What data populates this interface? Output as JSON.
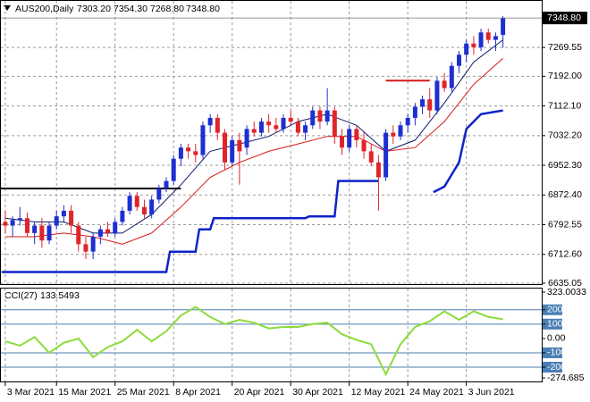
{
  "chart_data": [
    {
      "type": "candlestick",
      "title": "AUS200,Daily",
      "value_labels": {
        "open": "7303.20",
        "high": "7354.30",
        "low": "7268.80",
        "close": "7348.80"
      },
      "open": [
        6800,
        6790,
        6805,
        6810,
        6770,
        6790,
        6750,
        6790,
        6815,
        6830,
        6790,
        6740,
        6720,
        6760,
        6780,
        6770,
        6800,
        6830,
        6870,
        6840,
        6820,
        6860,
        6890,
        6910,
        6970,
        7000,
        6990,
        6980,
        7060,
        7080,
        7040,
        6960,
        7020,
        7000,
        7050,
        7040,
        7070,
        7060,
        7050,
        7080,
        7070,
        7040,
        7060,
        7100,
        7070,
        7100,
        7030,
        7000,
        7050,
        7020,
        6990,
        6960,
        6920,
        7040,
        7030,
        7060,
        7080,
        7110,
        7130,
        7100,
        7180,
        7160,
        7220,
        7250,
        7280,
        7270,
        7310,
        7290,
        7303.2
      ],
      "high": [
        6830,
        6815,
        6840,
        6825,
        6800,
        6810,
        6800,
        6830,
        6845,
        6845,
        6800,
        6760,
        6770,
        6790,
        6800,
        6810,
        6840,
        6880,
        6880,
        6860,
        6870,
        6900,
        6920,
        6980,
        7010,
        7010,
        7010,
        7070,
        7090,
        7090,
        7050,
        7030,
        7040,
        7060,
        7070,
        7080,
        7090,
        7080,
        7090,
        7100,
        7080,
        7070,
        7110,
        7110,
        7160,
        7110,
        7050,
        7060,
        7060,
        7040,
        7010,
        6980,
        7050,
        7060,
        7070,
        7090,
        7120,
        7140,
        7160,
        7190,
        7200,
        7230,
        7260,
        7290,
        7300,
        7320,
        7320,
        7310,
        7354.3
      ],
      "low": [
        6770,
        6760,
        6790,
        6760,
        6740,
        6730,
        6740,
        6780,
        6800,
        6770,
        6720,
        6700,
        6700,
        6740,
        6760,
        6760,
        6790,
        6820,
        6830,
        6810,
        6810,
        6850,
        6880,
        6900,
        6950,
        6970,
        6960,
        6970,
        7040,
        7020,
        6940,
        6950,
        6900,
        6980,
        7030,
        7030,
        7040,
        7040,
        7040,
        7060,
        7030,
        7020,
        7050,
        7050,
        7060,
        7010,
        6980,
        6990,
        7000,
        6970,
        6950,
        6830,
        6910,
        7010,
        7020,
        7040,
        7060,
        7090,
        7080,
        7090,
        7150,
        7150,
        7200,
        7230,
        7250,
        7260,
        7280,
        7260,
        7268.8
      ],
      "close": [
        6790,
        6805,
        6810,
        6770,
        6790,
        6750,
        6790,
        6815,
        6830,
        6790,
        6740,
        6720,
        6760,
        6780,
        6770,
        6800,
        6830,
        6870,
        6840,
        6820,
        6860,
        6890,
        6910,
        6970,
        7000,
        6990,
        6980,
        7060,
        7080,
        7040,
        6960,
        7020,
        6990,
        7050,
        7040,
        7070,
        7060,
        7050,
        7080,
        7070,
        7040,
        7060,
        7100,
        7070,
        7100,
        7030,
        7000,
        7050,
        7020,
        6990,
        6960,
        6920,
        7040,
        7030,
        7060,
        7080,
        7110,
        7130,
        7100,
        7180,
        7160,
        7220,
        7250,
        7280,
        7270,
        7310,
        7290,
        7300,
        7348.8
      ],
      "bull_color": "#1e2fd0",
      "bear_color": "#e0242a",
      "series": [
        {
          "color": "#0b1a6b",
          "width": 1,
          "x": [
            0,
            4,
            8,
            12,
            16,
            20,
            24,
            28,
            32,
            36,
            40,
            44,
            48,
            52,
            56,
            60,
            64,
            68
          ],
          "values": [
            6810,
            6800,
            6800,
            6770,
            6770,
            6820,
            6900,
            6990,
            7010,
            7030,
            7070,
            7090,
            7060,
            6990,
            7020,
            7120,
            7230,
            7290
          ]
        },
        {
          "color": "#d81818",
          "width": 1,
          "x": [
            0,
            4,
            8,
            12,
            16,
            20,
            24,
            28,
            32,
            36,
            40,
            44,
            48,
            52,
            56,
            60,
            64,
            68
          ],
          "values": [
            6760,
            6760,
            6770,
            6760,
            6740,
            6770,
            6840,
            6920,
            6960,
            6990,
            7010,
            7030,
            7030,
            6990,
            7000,
            7070,
            7170,
            7240
          ]
        },
        {
          "color": "#0f23c8",
          "width": 2.5,
          "x": [
            -0.5,
            22,
            22.5,
            26,
            26.5,
            28,
            28.5,
            41,
            41.5,
            45,
            45.5,
            51,
            52,
            58.5,
            60,
            62,
            63,
            65,
            68
          ],
          "values": [
            6665,
            6665,
            6720,
            6720,
            6780,
            6780,
            6810,
            6810,
            6815,
            6815,
            6910,
            6910,
            null,
            6880,
            6895,
            6960,
            7050,
            7090,
            7100
          ]
        },
        {
          "color": "#000000",
          "width": 2,
          "x": [
            -0.6,
            24
          ],
          "values": [
            6890,
            6890
          ]
        },
        {
          "color": "#d81818",
          "width": 2,
          "x": [
            52,
            58
          ],
          "values": [
            7180,
            7180
          ]
        }
      ],
      "xlim": [
        -0.6,
        73.3
      ],
      "xticks": [
        {
          "value": 0,
          "label": "3 Mar 2021"
        },
        {
          "value": 7,
          "label": "15 Mar 2021"
        },
        {
          "value": 15,
          "label": "25 Mar 2021"
        },
        {
          "value": 23,
          "label": "8 Apr 2021"
        },
        {
          "value": 31,
          "label": "20 Apr 2021"
        },
        {
          "value": 39,
          "label": "30 Apr 2021"
        },
        {
          "value": 47,
          "label": "12 May 2021"
        },
        {
          "value": 55,
          "label": "24 May 2021"
        },
        {
          "value": 63,
          "label": "3 Jun 2021"
        }
      ],
      "ylim": [
        6635.05,
        7390
      ],
      "yticks": [
        7269.55,
        {
          "value": 7192,
          "label": "7192.00"
        },
        {
          "value": 7112.1,
          "label": "7112.10"
        },
        {
          "value": 7032.2,
          "label": "7032.20"
        },
        {
          "value": 6952.3,
          "label": "6952.30"
        },
        {
          "value": 6872.4,
          "label": "6872.40"
        },
        6792.55,
        {
          "value": 6712.6,
          "label": "6712.60"
        },
        6635.05
      ],
      "grid": true
    },
    {
      "type": "line",
      "title": "CCI(27)",
      "color": "#8cdc3a",
      "level_color": "#4a7fb5",
      "x": [
        0,
        2,
        4,
        6,
        8,
        10,
        12,
        14,
        16,
        18,
        20,
        22,
        24,
        26,
        28,
        30,
        32,
        34,
        36,
        38,
        40,
        42,
        44,
        46,
        48,
        50,
        52,
        54,
        56,
        58,
        60,
        62,
        64,
        66,
        68
      ],
      "values": [
        -20,
        -50,
        10,
        -100,
        -30,
        0,
        -130,
        -60,
        -20,
        60,
        -20,
        50,
        160,
        220,
        150,
        100,
        130,
        110,
        70,
        80,
        80,
        100,
        110,
        30,
        -10,
        -40,
        -250,
        -40,
        80,
        120,
        190,
        130,
        190,
        150,
        133.5493
      ],
      "ylim": [
        -274.685,
        323.0033
      ],
      "yticks": [
        323.0033,
        200,
        100,
        {
          "value": 0,
          "label": "0.00"
        },
        -100,
        -200,
        -274.685
      ]
    }
  ]
}
